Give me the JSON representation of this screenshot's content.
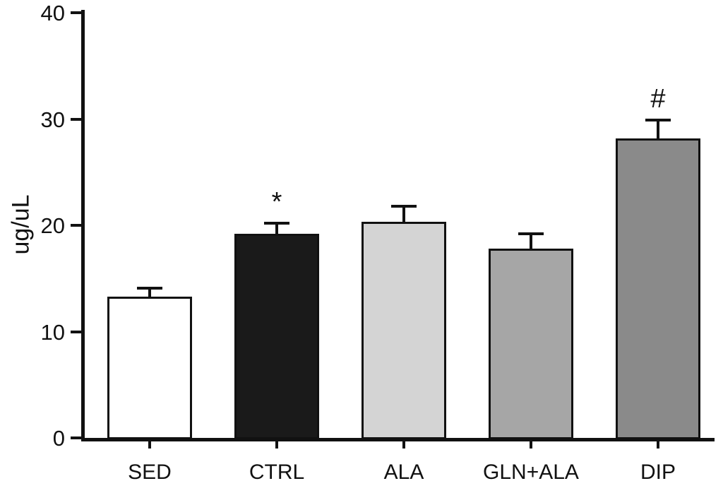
{
  "chart_data": {
    "type": "bar",
    "title": "",
    "xlabel": "",
    "ylabel": "ug/uL",
    "ylim": [
      0,
      40
    ],
    "yticks": [
      0,
      10,
      20,
      30,
      40
    ],
    "grid": false,
    "legend": "none",
    "categories": [
      "SED",
      "CTRL",
      "ALA",
      "GLN+ALA",
      "DIP"
    ],
    "values": [
      13.3,
      19.2,
      20.3,
      17.8,
      28.2
    ],
    "errors_upper": [
      0.8,
      1.0,
      1.5,
      1.4,
      1.7
    ],
    "annotations": [
      "",
      "*",
      "",
      "",
      "#"
    ],
    "bar_colors": [
      "#ffffff",
      "#1a1a1a",
      "#d4d4d4",
      "#a6a6a6",
      "#8a8a8a"
    ],
    "bar_border_color": "#111111",
    "axis_color": "#111111"
  }
}
